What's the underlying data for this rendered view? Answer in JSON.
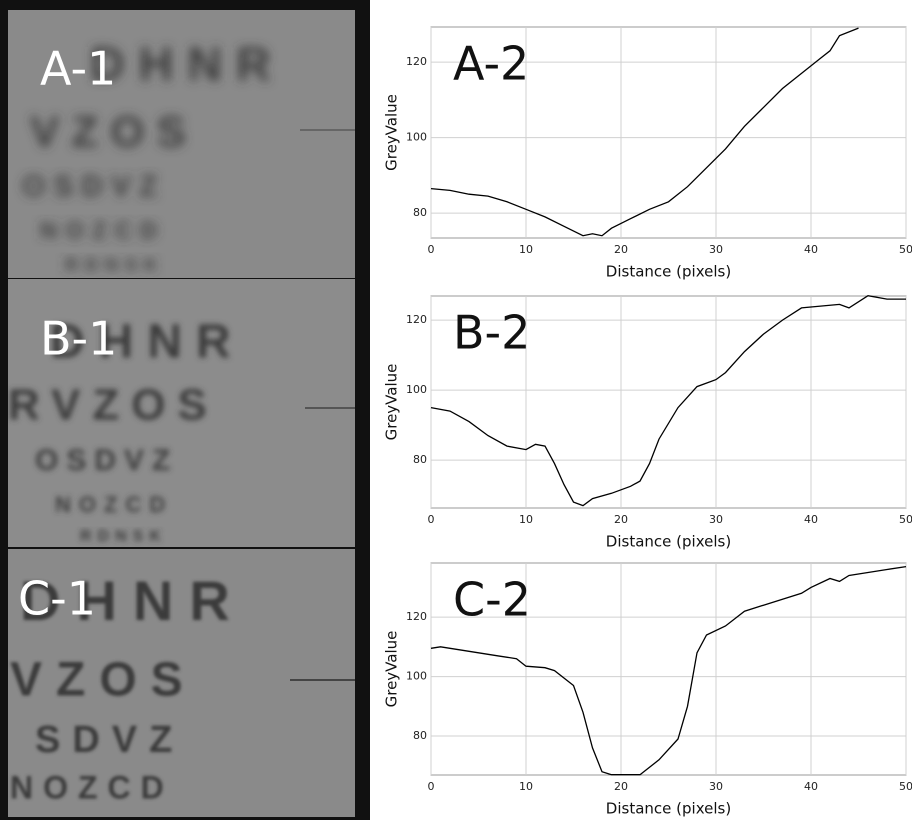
{
  "photo_panels": [
    {
      "label": "A-1",
      "rows": [
        "DHNR",
        "VZOS",
        "OSDVZ",
        "NOZCD",
        "RDNSK"
      ]
    },
    {
      "label": "B-1",
      "rows": [
        "DHNR",
        "RVZOS",
        "OSDVZ",
        "NOZCD",
        "RDNSK"
      ]
    },
    {
      "label": "C-1",
      "rows": [
        "DHNR",
        "VZOS",
        "SDVZ",
        "NOZCD"
      ]
    }
  ],
  "chart_data": [
    {
      "type": "line",
      "annotation": "A-2",
      "x_label": "Distance (pixels)",
      "y_label": "GreyValue",
      "color": "#000000",
      "grid": true,
      "x": [
        0,
        2,
        4,
        6,
        8,
        10,
        12,
        14,
        16,
        17,
        18,
        19,
        21,
        23,
        25,
        27,
        29,
        31,
        33,
        35,
        37,
        39,
        41,
        42,
        43,
        45
      ],
      "values": [
        86.5,
        86,
        85,
        84.5,
        83,
        81,
        79,
        76.5,
        74,
        74.5,
        74,
        76,
        78.5,
        81,
        83,
        87,
        92,
        97,
        103,
        108,
        113,
        117,
        121,
        123,
        127,
        129
      ],
      "xlim": [
        0,
        50
      ],
      "ylim": [
        73.4,
        129.3
      ],
      "xticks": [
        0,
        10,
        20,
        30,
        40,
        50
      ],
      "yticks": [
        80,
        100,
        120
      ]
    },
    {
      "type": "line",
      "annotation": "B-2",
      "x_label": "Distance (pixels)",
      "y_label": "GreyValue",
      "color": "#000000",
      "grid": true,
      "x": [
        0,
        2,
        4,
        6,
        8,
        10,
        11,
        12,
        13,
        14,
        15,
        16,
        17,
        19,
        21,
        22,
        23,
        24,
        26,
        28,
        30,
        31,
        33,
        35,
        37,
        39,
        41,
        43,
        44,
        46,
        48,
        50
      ],
      "values": [
        95,
        94,
        91,
        87,
        84,
        83,
        84.5,
        84,
        79,
        73,
        68,
        67,
        69,
        70.5,
        72.5,
        74,
        79,
        86,
        95,
        101,
        103,
        105,
        111,
        116,
        120,
        123.5,
        124,
        124.5,
        123.5,
        127,
        126,
        126
      ],
      "xlim": [
        0,
        50
      ],
      "ylim": [
        66.3,
        126.9
      ],
      "xticks": [
        0,
        10,
        20,
        30,
        40,
        50
      ],
      "yticks": [
        80,
        100,
        120
      ]
    },
    {
      "type": "line",
      "annotation": "C-2",
      "x_label": "Distance (pixels)",
      "y_label": "GreyValue",
      "color": "#000000",
      "grid": true,
      "x": [
        0,
        1,
        3,
        5,
        7,
        9,
        10,
        12,
        13,
        15,
        16,
        17,
        18,
        19,
        22,
        24,
        26,
        27,
        28,
        29,
        31,
        33,
        35,
        37,
        39,
        40,
        42,
        43,
        44,
        46,
        48,
        50
      ],
      "values": [
        109.5,
        110,
        109,
        108,
        107,
        106,
        103.5,
        103,
        102,
        97,
        88,
        76,
        68,
        67,
        67,
        72,
        79,
        90,
        108,
        114,
        117,
        122,
        124,
        126,
        128,
        130,
        133,
        132,
        134,
        135,
        136,
        137
      ],
      "xlim": [
        0,
        50
      ],
      "ylim": [
        66.9,
        138.2
      ],
      "xticks": [
        0,
        10,
        20,
        30,
        40,
        50
      ],
      "yticks": [
        80,
        100,
        120
      ]
    }
  ]
}
